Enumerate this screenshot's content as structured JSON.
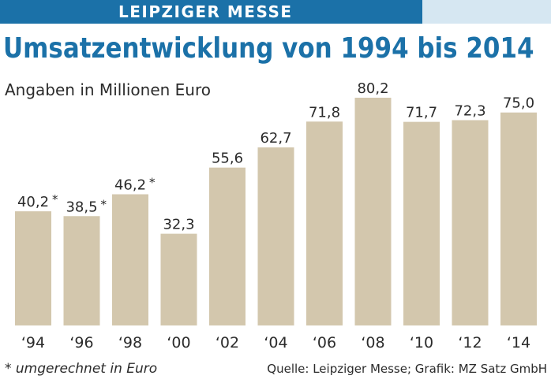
{
  "header": {
    "kicker": "LEIPZIGER MESSE",
    "title": "Umsatzentwicklung von 1994 bis 2014",
    "subtitle": "Angaben in Millionen Euro"
  },
  "footer": {
    "footnote": "* umgerechnet in Euro",
    "source": "Quelle: Leipziger Messe; Grafik: MZ Satz GmbH"
  },
  "colors": {
    "accent": "#1b71a8",
    "header_light": "#d6e7f2",
    "bar": "#d3c7ad",
    "text": "#2b2b2b"
  },
  "chart_data": {
    "type": "bar",
    "title": "Umsatzentwicklung von 1994 bis 2014",
    "ylabel": "Angaben in Millionen Euro",
    "categories": [
      "‘94",
      "‘96",
      "‘98",
      "‘00",
      "‘02",
      "‘04",
      "‘06",
      "‘08",
      "‘10",
      "‘12",
      "‘14"
    ],
    "values": [
      40.2,
      38.5,
      46.2,
      32.3,
      55.6,
      62.7,
      71.8,
      80.2,
      71.7,
      72.3,
      75.0
    ],
    "value_labels": [
      "40,2",
      "38,5",
      "46,2",
      "32,3",
      "55,6",
      "62,7",
      "71,8",
      "80,2",
      "71,7",
      "72,3",
      "75,0"
    ],
    "asterisk": [
      true,
      true,
      true,
      false,
      false,
      false,
      false,
      false,
      false,
      false,
      false
    ],
    "ylim": [
      0,
      80.2
    ],
    "grid": false,
    "legend": "none"
  }
}
